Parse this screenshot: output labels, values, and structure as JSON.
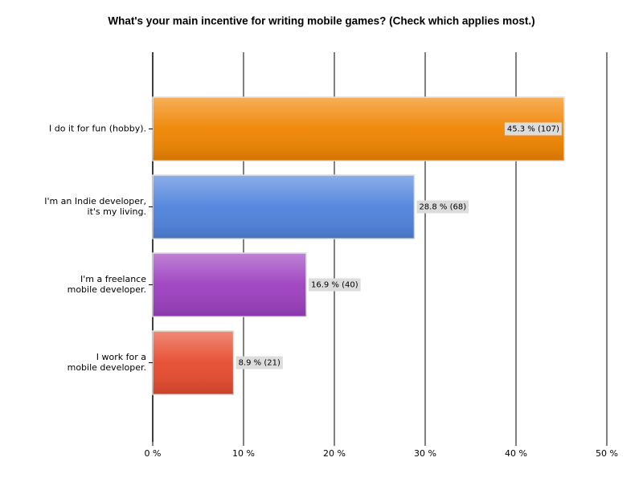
{
  "chart_data": {
    "type": "bar",
    "orientation": "horizontal",
    "title": "What's your main incentive for writing mobile games? (Check which applies most.)",
    "categories": [
      [
        "I do it for fun (hobby)."
      ],
      [
        "I'm an Indie developer,",
        "it's my living."
      ],
      [
        "I'm a freelance",
        "mobile developer."
      ],
      [
        "I work for a",
        "mobile developer."
      ]
    ],
    "values": [
      45.3,
      28.8,
      16.9,
      8.9
    ],
    "value_labels": [
      "45.3 % (107)",
      "28.8 % (68)",
      "16.9 % (40)",
      "8.9 % (21)"
    ],
    "colors": [
      "#f08400",
      "#4f82dc",
      "#9c3fbf",
      "#e64a2e"
    ],
    "xlim": [
      0,
      50
    ],
    "xticks": [
      {
        "value": 0,
        "label": "0 %"
      },
      {
        "value": 10,
        "label": "10 %"
      },
      {
        "value": 20,
        "label": "20 %"
      },
      {
        "value": 30,
        "label": "30 %"
      },
      {
        "value": 40,
        "label": "40 %"
      },
      {
        "value": 50,
        "label": "50 %"
      }
    ],
    "grid": true
  }
}
